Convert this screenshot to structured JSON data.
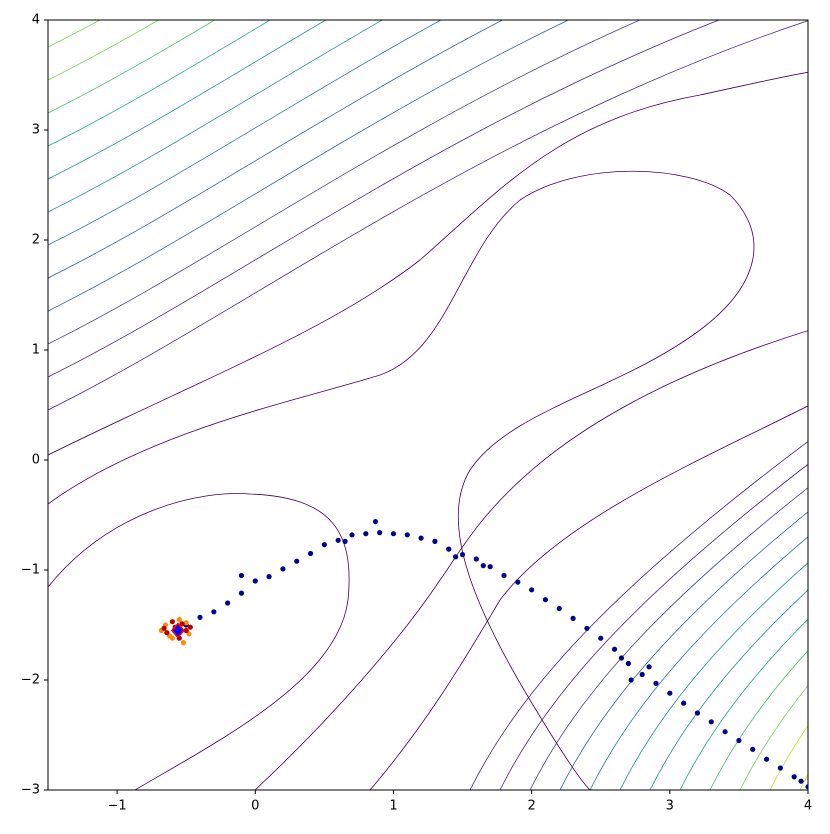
{
  "chart_data": {
    "type": "scatter",
    "xlim": [
      -1.5,
      4
    ],
    "ylim": [
      -3,
      4
    ],
    "xticks": [
      {
        "value": -1,
        "label": "−1"
      },
      0,
      1,
      2,
      3,
      4
    ],
    "yticks": [
      {
        "value": -3,
        "label": "−3"
      },
      {
        "value": -2,
        "label": "−2"
      },
      {
        "value": -1,
        "label": "−1"
      },
      0,
      1,
      2,
      3,
      4
    ],
    "series": [
      {
        "color": "#00008b",
        "marker": "dot",
        "x": [
          4,
          3.95,
          3.9,
          3.8,
          3.7,
          3.6,
          3.5,
          3.4,
          3.3,
          3.2,
          3.1,
          3,
          2.9,
          2.8,
          2.7,
          2.65,
          2.6,
          2.5,
          2.4,
          2.3,
          2.2,
          2.1,
          2,
          1.9,
          1.8,
          1.7,
          1.6,
          1.5,
          1.4,
          1.3,
          1.2,
          1.1,
          1,
          0.9,
          0.8,
          0.7,
          0.6,
          0.5,
          0.4,
          0.3,
          0.2,
          0.1,
          0,
          -0.1,
          -0.2,
          -0.3,
          -0.4,
          -0.5,
          0.87,
          2.72,
          2.85,
          1.45,
          -0.1,
          0.65,
          1.65
        ],
        "y": [
          -2.97,
          -2.92,
          -2.88,
          -2.8,
          -2.72,
          -2.63,
          -2.55,
          -2.47,
          -2.38,
          -2.3,
          -2.21,
          -2.12,
          -2.03,
          -1.95,
          -1.85,
          -1.8,
          -1.72,
          -1.62,
          -1.53,
          -1.44,
          -1.35,
          -1.27,
          -1.18,
          -1.11,
          -1.05,
          -0.97,
          -0.9,
          -0.86,
          -0.81,
          -0.74,
          -0.71,
          -0.68,
          -0.67,
          -0.66,
          -0.67,
          -0.68,
          -0.73,
          -0.77,
          -0.85,
          -0.92,
          -0.99,
          -1.06,
          -1.1,
          -1.21,
          -1.3,
          -1.38,
          -1.43,
          -1.5,
          -0.56,
          -2.0,
          -1.88,
          -0.88,
          -1.05,
          -0.74,
          -0.96
        ]
      },
      {
        "color": "#ff8c00",
        "marker": "dot",
        "x": [
          -0.65,
          -0.6,
          -0.5,
          -0.48,
          -0.62,
          -0.55,
          -0.68,
          -0.52
        ],
        "y": [
          -1.5,
          -1.62,
          -1.48,
          -1.58,
          -1.6,
          -1.45,
          -1.55,
          -1.66
        ]
      },
      {
        "color": "#b00000",
        "marker": "dot",
        "x": [
          -0.58,
          -0.64,
          -0.5,
          -0.55,
          -0.6,
          -0.47,
          -0.66,
          -0.53
        ],
        "y": [
          -1.52,
          -1.57,
          -1.55,
          -1.62,
          -1.47,
          -1.52,
          -1.53,
          -1.49
        ]
      },
      {
        "color": "#0000ff",
        "marker": "diamond",
        "x": [
          -0.56
        ],
        "y": [
          -1.55
        ]
      }
    ]
  }
}
